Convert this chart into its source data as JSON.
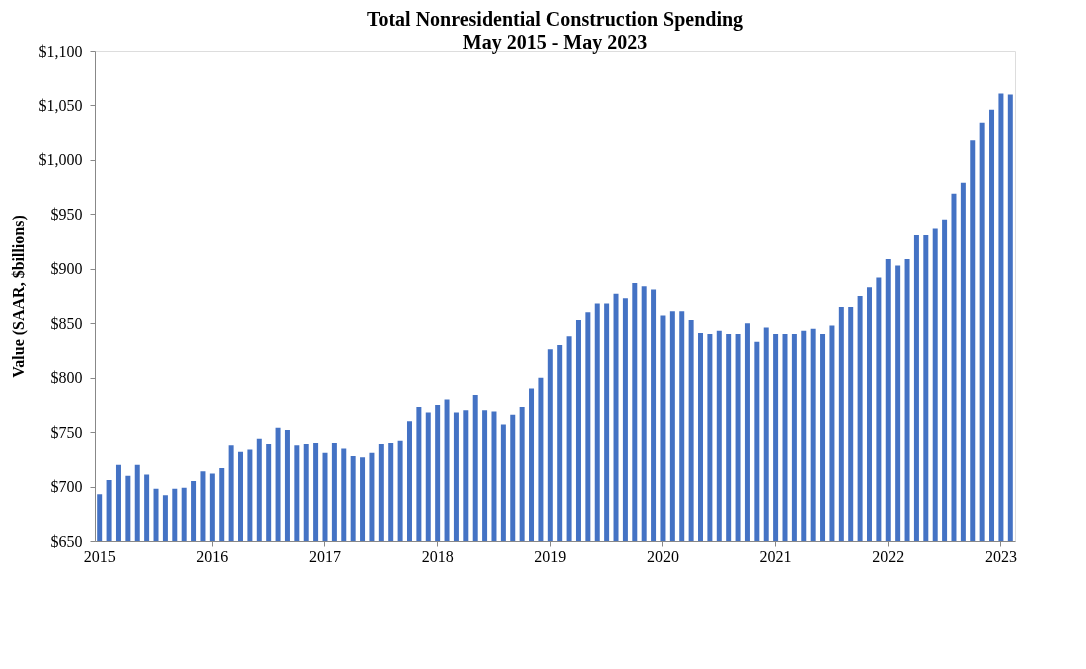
{
  "chart_data": {
    "type": "bar",
    "title": "Total Nonresidential Construction Spending",
    "subtitle": "May 2015 - May 2023",
    "ylabel": "Value (SAAR, $billions)",
    "categories": [
      "2015",
      null,
      null,
      null,
      null,
      null,
      null,
      null,
      null,
      null,
      null,
      null,
      "2016",
      null,
      null,
      null,
      null,
      null,
      null,
      null,
      null,
      null,
      null,
      null,
      "2017",
      null,
      null,
      null,
      null,
      null,
      null,
      null,
      null,
      null,
      null,
      null,
      "2018",
      null,
      null,
      null,
      null,
      null,
      null,
      null,
      null,
      null,
      null,
      null,
      "2019",
      null,
      null,
      null,
      null,
      null,
      null,
      null,
      null,
      null,
      null,
      null,
      "2020",
      null,
      null,
      null,
      null,
      null,
      null,
      null,
      null,
      null,
      null,
      null,
      "2021",
      null,
      null,
      null,
      null,
      null,
      null,
      null,
      null,
      null,
      null,
      null,
      "2022",
      null,
      null,
      null,
      null,
      null,
      null,
      null,
      null,
      null,
      null,
      null,
      "2023",
      null
    ],
    "values": [
      693,
      706,
      720,
      710,
      720,
      711,
      698,
      692,
      698,
      699,
      705,
      714,
      712,
      717,
      738,
      732,
      734,
      744,
      739,
      754,
      752,
      738,
      739,
      740,
      731,
      740,
      735,
      728,
      727,
      731,
      739,
      740,
      742,
      760,
      773,
      768,
      775,
      780,
      768,
      770,
      784,
      770,
      769,
      757,
      766,
      773,
      790,
      800,
      826,
      830,
      838,
      853,
      860,
      868,
      868,
      877,
      873,
      887,
      884,
      881,
      857,
      861,
      861,
      853,
      841,
      840,
      843,
      840,
      840,
      850,
      833,
      846,
      840,
      840,
      840,
      843,
      845,
      840,
      848,
      865,
      865,
      875,
      883,
      892,
      909,
      903,
      909,
      931,
      931,
      937,
      945,
      969,
      979,
      1018,
      1034,
      1046,
      1061,
      1060
    ],
    "color": "#4472c4",
    "ylim": [
      650,
      1100
    ],
    "yticks": [
      {
        "value": 650,
        "label": "$650"
      },
      {
        "value": 700,
        "label": "$700"
      },
      {
        "value": 750,
        "label": "$750"
      },
      {
        "value": 800,
        "label": "$800"
      },
      {
        "value": 850,
        "label": "$850"
      },
      {
        "value": 900,
        "label": "$900"
      },
      {
        "value": 950,
        "label": "$950"
      },
      {
        "value": 1000,
        "label": "$1,000"
      },
      {
        "value": 1050,
        "label": "$1,050"
      },
      {
        "value": 1100,
        "label": "$1,100"
      }
    ],
    "grid": false
  }
}
